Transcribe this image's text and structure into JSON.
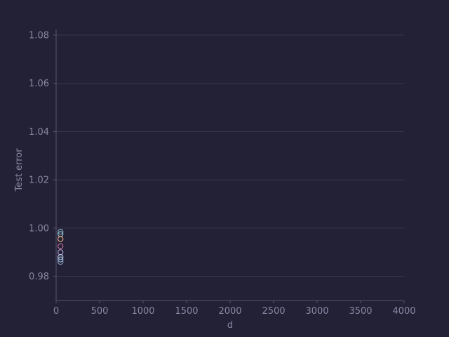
{
  "chart_data": {
    "type": "scatter",
    "title": "",
    "xlabel": "d",
    "ylabel": "Test error",
    "xlim": [
      0,
      4000
    ],
    "ylim": [
      0.97,
      1.08
    ],
    "xticks": [
      0,
      500,
      1000,
      1500,
      2000,
      2500,
      3000,
      3500,
      4000
    ],
    "yticks": [
      0.98,
      1.0,
      1.02,
      1.04,
      1.06,
      1.08
    ],
    "grid": "horizontal",
    "marker": "hollow-circle",
    "colors": {
      "background": "#232136",
      "grid": "#3a3750",
      "axis": "#57536e",
      "text": "#8a86a3"
    },
    "series": [
      {
        "color": "#7f9fb8",
        "points": [
          {
            "x": 50,
            "y": 0.9985
          }
        ]
      },
      {
        "color": "#8fb8c4",
        "points": [
          {
            "x": 50,
            "y": 0.9975
          }
        ]
      },
      {
        "color": "#e0a880",
        "points": [
          {
            "x": 50,
            "y": 0.9955
          }
        ]
      },
      {
        "color": "#c4709a",
        "points": [
          {
            "x": 50,
            "y": 0.9925
          }
        ]
      },
      {
        "color": "#a8a0d0",
        "points": [
          {
            "x": 50,
            "y": 0.99
          }
        ]
      },
      {
        "color": "#b8c4e0",
        "points": [
          {
            "x": 50,
            "y": 0.988
          }
        ]
      },
      {
        "color": "#9ab0c8",
        "points": [
          {
            "x": 50,
            "y": 0.987
          }
        ]
      },
      {
        "color": "#7a8fb0",
        "points": [
          {
            "x": 50,
            "y": 0.986
          }
        ]
      }
    ]
  }
}
